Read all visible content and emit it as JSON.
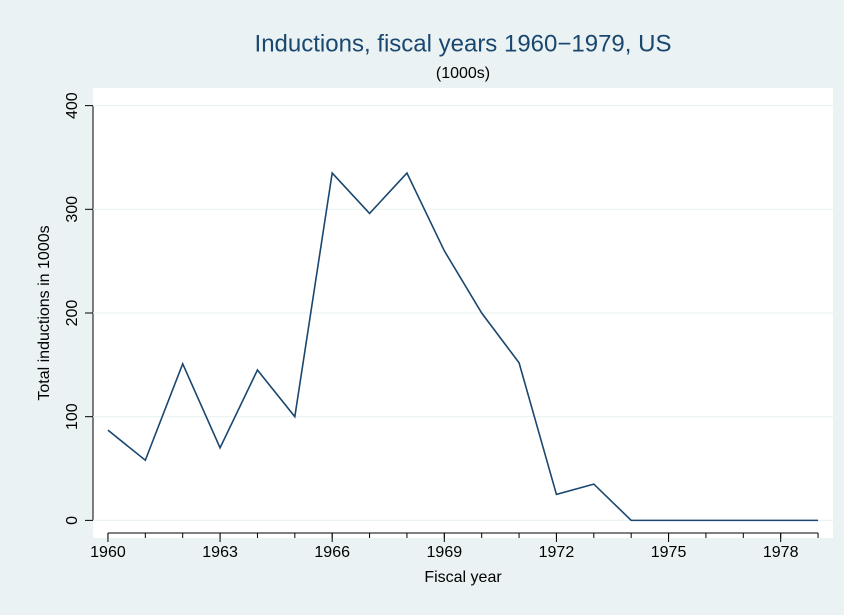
{
  "chart_data": {
    "type": "line",
    "title": "Inductions, fiscal years 1960−1979, US",
    "subtitle": "(1000s)",
    "x_label": "Fiscal year",
    "y_label": "Total inductions in 1000s",
    "x": [
      1960,
      1961,
      1962,
      1963,
      1964,
      1965,
      1966,
      1967,
      1968,
      1969,
      1970,
      1971,
      1972,
      1973,
      1974,
      1975,
      1976,
      1977,
      1978,
      1979
    ],
    "series": [
      {
        "name": "Total inductions in 1000s",
        "color": "#1a476f",
        "values": [
          87,
          58,
          151,
          70,
          145,
          100,
          335,
          296,
          335,
          260,
          200,
          152,
          25,
          35,
          0,
          0,
          0,
          0,
          0,
          0
        ]
      }
    ],
    "xlim": [
      1959.6,
      1979.4
    ],
    "xticks": [
      1960,
      1963,
      1966,
      1969,
      1972,
      1975,
      1978
    ],
    "ylim": [
      -17,
      417
    ],
    "yticks": [
      0,
      100,
      200,
      300,
      400
    ],
    "grid": true
  }
}
